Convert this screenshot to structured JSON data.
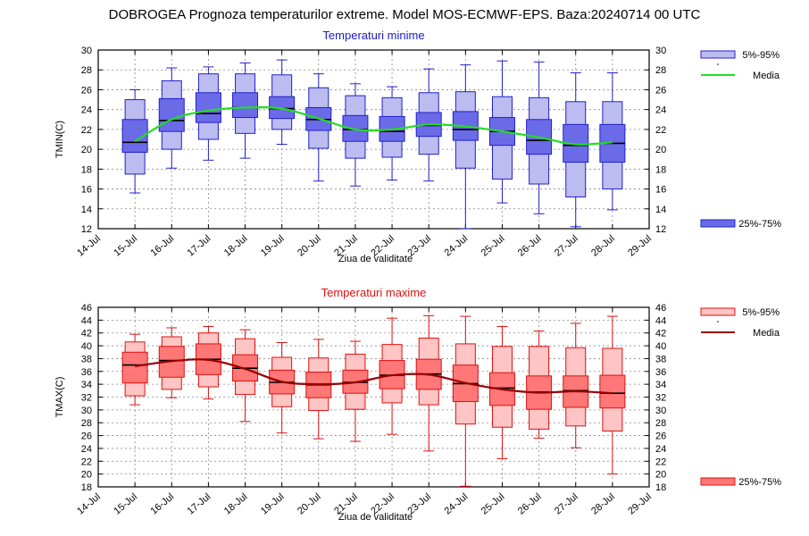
{
  "title": "DOBROGEA  Prognoza temperaturilor extreme.  Model MOS-ECMWF-EPS. Baza:20240714 00 UTC",
  "chart_data": [
    {
      "type": "box",
      "title": "Temperaturi minime",
      "ylabel": "TMIN(C)",
      "xlabel": "Ziua de validitate",
      "x_ticks": [
        "14-Jul",
        "15-Jul",
        "16-Jul",
        "17-Jul",
        "18-Jul",
        "19-Jul",
        "20-Jul",
        "21-Jul",
        "22-Jul",
        "23-Jul",
        "24-Jul",
        "25-Jul",
        "26-Jul",
        "27-Jul",
        "28-Jul",
        "29-Jul"
      ],
      "ylim": [
        12,
        30
      ],
      "y_ticks": [
        12,
        14,
        16,
        18,
        20,
        22,
        24,
        26,
        28,
        30
      ],
      "grid": true,
      "legend": {
        "p5_95": "5%-95%",
        "mean": "Media",
        "p25_75": "25%-75%"
      },
      "colors": {
        "box": "#6b6be8",
        "box_edge": "#2020cc",
        "whisker_box": "#bcbcf0",
        "mean": "#22dd22"
      },
      "boxes": [
        {
          "date": "15-Jul",
          "min": 15.6,
          "p5": 17.5,
          "p25": 19.7,
          "median": 20.7,
          "p75": 23.0,
          "p95": 25.0,
          "max": 26.0,
          "mean": 20.8
        },
        {
          "date": "16-Jul",
          "min": 18.1,
          "p5": 20.0,
          "p25": 21.8,
          "median": 22.9,
          "p75": 25.1,
          "p95": 26.9,
          "max": 28.2,
          "mean": 23.0
        },
        {
          "date": "17-Jul",
          "min": 18.9,
          "p5": 21.0,
          "p25": 22.7,
          "median": 23.6,
          "p75": 25.7,
          "p95": 27.6,
          "max": 28.3,
          "mean": 23.9
        },
        {
          "date": "18-Jul",
          "min": 19.1,
          "p5": 21.6,
          "p25": 23.2,
          "median": 24.2,
          "p75": 25.7,
          "p95": 27.6,
          "max": 28.7,
          "mean": 24.2
        },
        {
          "date": "19-Jul",
          "min": 20.5,
          "p5": 22.0,
          "p25": 23.1,
          "median": 24.1,
          "p75": 25.3,
          "p95": 27.5,
          "max": 29.0,
          "mean": 24.1
        },
        {
          "date": "20-Jul",
          "min": 16.8,
          "p5": 20.1,
          "p25": 21.9,
          "median": 23.0,
          "p75": 24.2,
          "p95": 26.2,
          "max": 27.6,
          "mean": 23.1
        },
        {
          "date": "21-Jul",
          "min": 16.3,
          "p5": 19.1,
          "p25": 20.8,
          "median": 22.0,
          "p75": 23.4,
          "p95": 25.4,
          "max": 26.6,
          "mean": 22.0
        },
        {
          "date": "22-Jul",
          "min": 16.9,
          "p5": 19.2,
          "p25": 20.8,
          "median": 21.8,
          "p75": 23.3,
          "p95": 25.2,
          "max": 26.3,
          "mean": 22.0
        },
        {
          "date": "23-Jul",
          "min": 16.8,
          "p5": 19.5,
          "p25": 21.3,
          "median": 22.4,
          "p75": 23.7,
          "p95": 25.7,
          "max": 28.1,
          "mean": 22.5
        },
        {
          "date": "24-Jul",
          "min": 12.0,
          "p5": 18.1,
          "p25": 20.9,
          "median": 22.0,
          "p75": 23.8,
          "p95": 25.8,
          "max": 28.5,
          "mean": 22.3
        },
        {
          "date": "25-Jul",
          "min": 14.6,
          "p5": 17.0,
          "p25": 20.4,
          "median": 21.8,
          "p75": 23.2,
          "p95": 25.3,
          "max": 28.9,
          "mean": 21.8
        },
        {
          "date": "26-Jul",
          "min": 13.5,
          "p5": 16.5,
          "p25": 19.5,
          "median": 20.9,
          "p75": 23.0,
          "p95": 25.2,
          "max": 28.8,
          "mean": 21.2
        },
        {
          "date": "27-Jul",
          "min": 12.2,
          "p5": 15.2,
          "p25": 18.7,
          "median": 20.4,
          "p75": 22.5,
          "p95": 24.8,
          "max": 27.7,
          "mean": 20.5
        },
        {
          "date": "28-Jul",
          "min": 13.9,
          "p5": 16.0,
          "p25": 18.7,
          "median": 20.6,
          "p75": 22.5,
          "p95": 24.8,
          "max": 27.7,
          "mean": 20.7
        }
      ]
    },
    {
      "type": "box",
      "title": "Temperaturi maxime",
      "ylabel": "TMAX(C)",
      "xlabel": "Ziua de validitate",
      "x_ticks": [
        "14-Jul",
        "15-Jul",
        "16-Jul",
        "17-Jul",
        "18-Jul",
        "19-Jul",
        "20-Jul",
        "21-Jul",
        "22-Jul",
        "23-Jul",
        "24-Jul",
        "25-Jul",
        "26-Jul",
        "27-Jul",
        "28-Jul",
        "29-Jul"
      ],
      "ylim": [
        18,
        46
      ],
      "y_ticks": [
        18,
        20,
        22,
        24,
        26,
        28,
        30,
        32,
        34,
        36,
        38,
        40,
        42,
        44,
        46
      ],
      "grid": true,
      "legend": {
        "p5_95": "5%-95%",
        "mean": "Media",
        "p25_75": "25%-75%"
      },
      "colors": {
        "box": "#ff7777",
        "box_edge": "#dd1111",
        "whisker_box": "#ffc4c4",
        "mean": "#990000"
      },
      "boxes": [
        {
          "date": "15-Jul",
          "min": 30.8,
          "p5": 32.2,
          "p25": 34.2,
          "median": 37.0,
          "p75": 39.0,
          "p95": 40.6,
          "max": 41.8,
          "mean": 36.8
        },
        {
          "date": "16-Jul",
          "min": 31.9,
          "p5": 33.2,
          "p25": 35.1,
          "median": 37.7,
          "p75": 39.9,
          "p95": 41.4,
          "max": 42.8,
          "mean": 37.6
        },
        {
          "date": "17-Jul",
          "min": 31.7,
          "p5": 33.6,
          "p25": 35.5,
          "median": 37.9,
          "p75": 40.3,
          "p95": 42.0,
          "max": 43.0,
          "mean": 37.8
        },
        {
          "date": "18-Jul",
          "min": 28.2,
          "p5": 32.4,
          "p25": 34.5,
          "median": 36.5,
          "p75": 38.6,
          "p95": 41.1,
          "max": 42.5,
          "mean": 36.4
        },
        {
          "date": "19-Jul",
          "min": 26.4,
          "p5": 30.5,
          "p25": 32.5,
          "median": 34.3,
          "p75": 36.2,
          "p95": 38.2,
          "max": 40.5,
          "mean": 34.4
        },
        {
          "date": "20-Jul",
          "min": 25.5,
          "p5": 29.9,
          "p25": 31.9,
          "median": 33.9,
          "p75": 35.9,
          "p95": 38.1,
          "max": 41.0,
          "mean": 34.0
        },
        {
          "date": "21-Jul",
          "min": 25.1,
          "p5": 30.1,
          "p25": 32.6,
          "median": 34.3,
          "p75": 36.2,
          "p95": 38.7,
          "max": 40.7,
          "mean": 34.3
        },
        {
          "date": "22-Jul",
          "min": 26.2,
          "p5": 31.1,
          "p25": 33.3,
          "median": 35.4,
          "p75": 37.7,
          "p95": 40.2,
          "max": 44.3,
          "mean": 35.4
        },
        {
          "date": "23-Jul",
          "min": 23.6,
          "p5": 30.8,
          "p25": 33.2,
          "median": 35.6,
          "p75": 37.9,
          "p95": 41.2,
          "max": 44.7,
          "mean": 35.5
        },
        {
          "date": "24-Jul",
          "min": 18.1,
          "p5": 27.8,
          "p25": 31.3,
          "median": 34.1,
          "p75": 37.0,
          "p95": 40.3,
          "max": 44.6,
          "mean": 34.2
        },
        {
          "date": "25-Jul",
          "min": 22.4,
          "p5": 27.3,
          "p25": 30.7,
          "median": 33.4,
          "p75": 35.8,
          "p95": 39.9,
          "max": 43.0,
          "mean": 33.2
        },
        {
          "date": "26-Jul",
          "min": 25.6,
          "p5": 27.0,
          "p25": 30.1,
          "median": 32.8,
          "p75": 35.3,
          "p95": 39.9,
          "max": 42.3,
          "mean": 32.7
        },
        {
          "date": "27-Jul",
          "min": 24.1,
          "p5": 27.5,
          "p25": 30.4,
          "median": 33.0,
          "p75": 35.3,
          "p95": 39.7,
          "max": 43.5,
          "mean": 32.9
        },
        {
          "date": "28-Jul",
          "min": 20.0,
          "p5": 26.7,
          "p25": 30.3,
          "median": 32.6,
          "p75": 35.4,
          "p95": 39.6,
          "max": 44.6,
          "mean": 32.6
        }
      ]
    }
  ]
}
